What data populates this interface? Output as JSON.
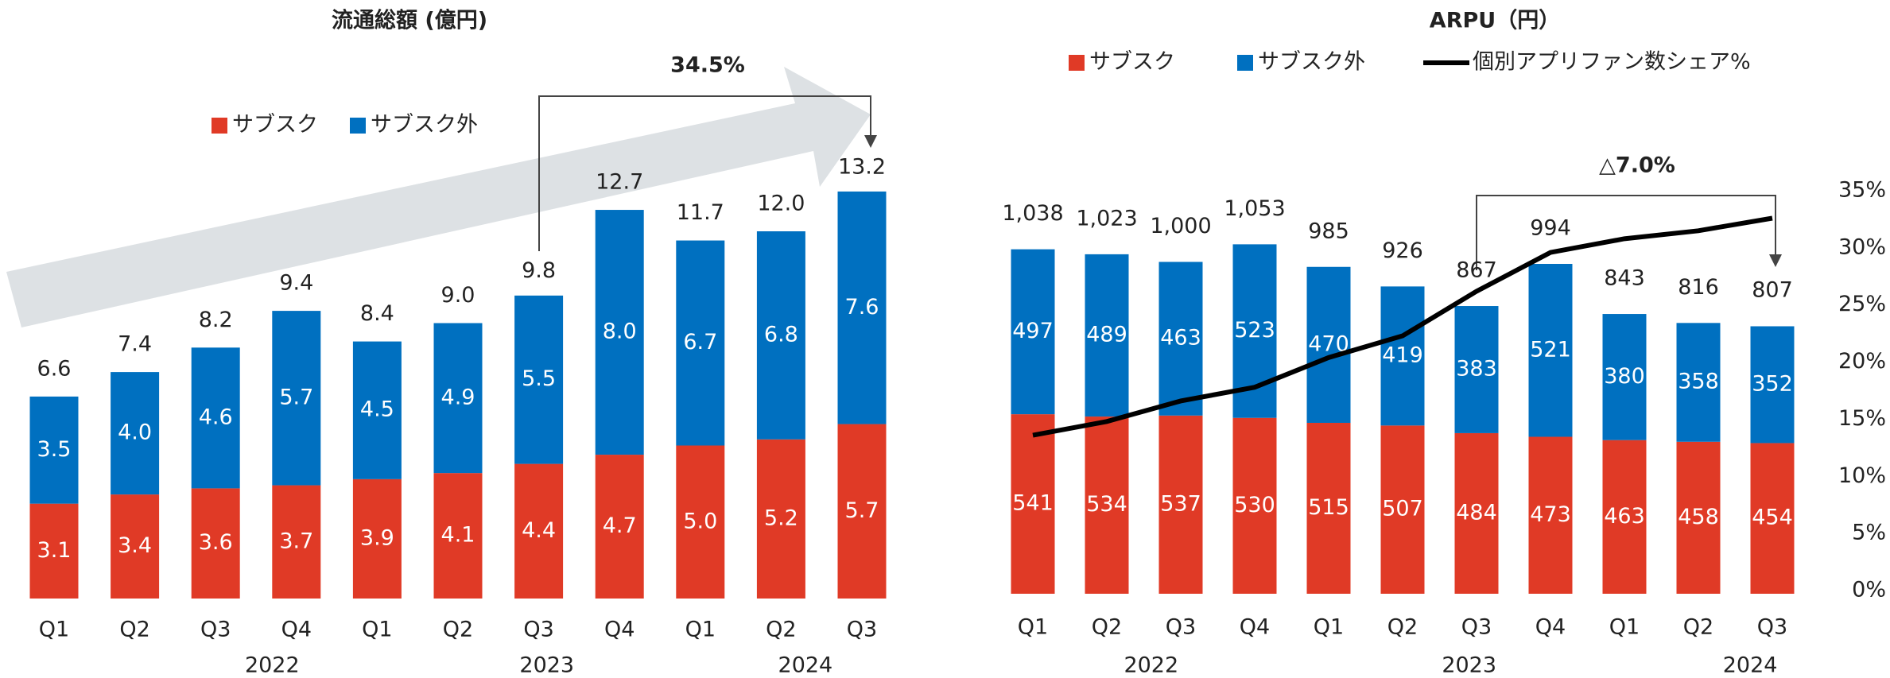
{
  "chart_data": [
    {
      "type": "bar",
      "stacked": true,
      "title": "流通総額 (億円)",
      "categories": [
        "Q1",
        "Q2",
        "Q3",
        "Q4",
        "Q1",
        "Q2",
        "Q3",
        "Q4",
        "Q1",
        "Q2",
        "Q3"
      ],
      "years": [
        "2022",
        "2023",
        "2024"
      ],
      "series": [
        {
          "name": "サブスク",
          "color": "#e03a26",
          "values": [
            3.1,
            3.4,
            3.6,
            3.7,
            3.9,
            4.1,
            4.4,
            4.7,
            5.0,
            5.2,
            5.7
          ],
          "value_labels": [
            "3.1",
            "3.4",
            "3.6",
            "3.7",
            "3.9",
            "4.1",
            "4.4",
            "4.7",
            "5.0",
            "5.2",
            "5.7"
          ]
        },
        {
          "name": "サブスク外",
          "color": "#0070c0",
          "values": [
            3.5,
            4.0,
            4.6,
            5.7,
            4.5,
            4.9,
            5.5,
            8.0,
            6.7,
            6.8,
            7.6
          ],
          "value_labels": [
            "3.5",
            "4.0",
            "4.6",
            "5.7",
            "4.5",
            "4.9",
            "5.5",
            "8.0",
            "6.7",
            "6.8",
            "7.6"
          ]
        }
      ],
      "totals": [
        6.6,
        7.4,
        8.2,
        9.4,
        8.4,
        9.0,
        9.8,
        12.7,
        11.7,
        12.0,
        13.2
      ],
      "total_labels": [
        "6.6",
        "7.4",
        "8.2",
        "9.4",
        "8.4",
        "9.0",
        "9.8",
        "12.7",
        "11.7",
        "12.0",
        "13.2"
      ],
      "annotation": "34.5%",
      "ylim": [
        0,
        14
      ]
    },
    {
      "type": "bar",
      "stacked": true,
      "title": "ARPU（円）",
      "categories": [
        "Q1",
        "Q2",
        "Q3",
        "Q4",
        "Q1",
        "Q2",
        "Q3",
        "Q4",
        "Q1",
        "Q2",
        "Q3"
      ],
      "years": [
        "2022",
        "2023",
        "2024"
      ],
      "series": [
        {
          "name": "サブスク",
          "color": "#e03a26",
          "values": [
            541,
            534,
            537,
            530,
            515,
            507,
            484,
            473,
            463,
            458,
            454
          ]
        },
        {
          "name": "サブスク外",
          "color": "#0070c0",
          "values": [
            497,
            489,
            463,
            523,
            470,
            419,
            383,
            521,
            380,
            358,
            352
          ]
        },
        {
          "name": "個別アプリファン数シェア%",
          "color": "#000000",
          "type": "line",
          "axis": "y2",
          "values": [
            13.6,
            14.8,
            16.6,
            17.8,
            20.4,
            22.3,
            26.2,
            29.6,
            30.8,
            31.5,
            32.6
          ]
        }
      ],
      "totals": [
        1038,
        1023,
        1000,
        1053,
        985,
        926,
        867,
        994,
        843,
        816,
        807
      ],
      "total_labels": [
        "1,038",
        "1,023",
        "1,000",
        "1,053",
        "985",
        "926",
        "867",
        "994",
        "843",
        "816",
        "807"
      ],
      "annotation": "△7.0%",
      "ylim": [
        0,
        1200
      ],
      "y2lim": [
        0,
        35
      ],
      "y2ticks": [
        {
          "value": 0,
          "label": "0%"
        },
        {
          "value": 5,
          "label": "5%"
        },
        {
          "value": 10,
          "label": "10%"
        },
        {
          "value": 15,
          "label": "15%"
        },
        {
          "value": 20,
          "label": "20%"
        },
        {
          "value": 25,
          "label": "25%"
        },
        {
          "value": 30,
          "label": "30%"
        },
        {
          "value": 35,
          "label": "35%"
        }
      ]
    }
  ]
}
